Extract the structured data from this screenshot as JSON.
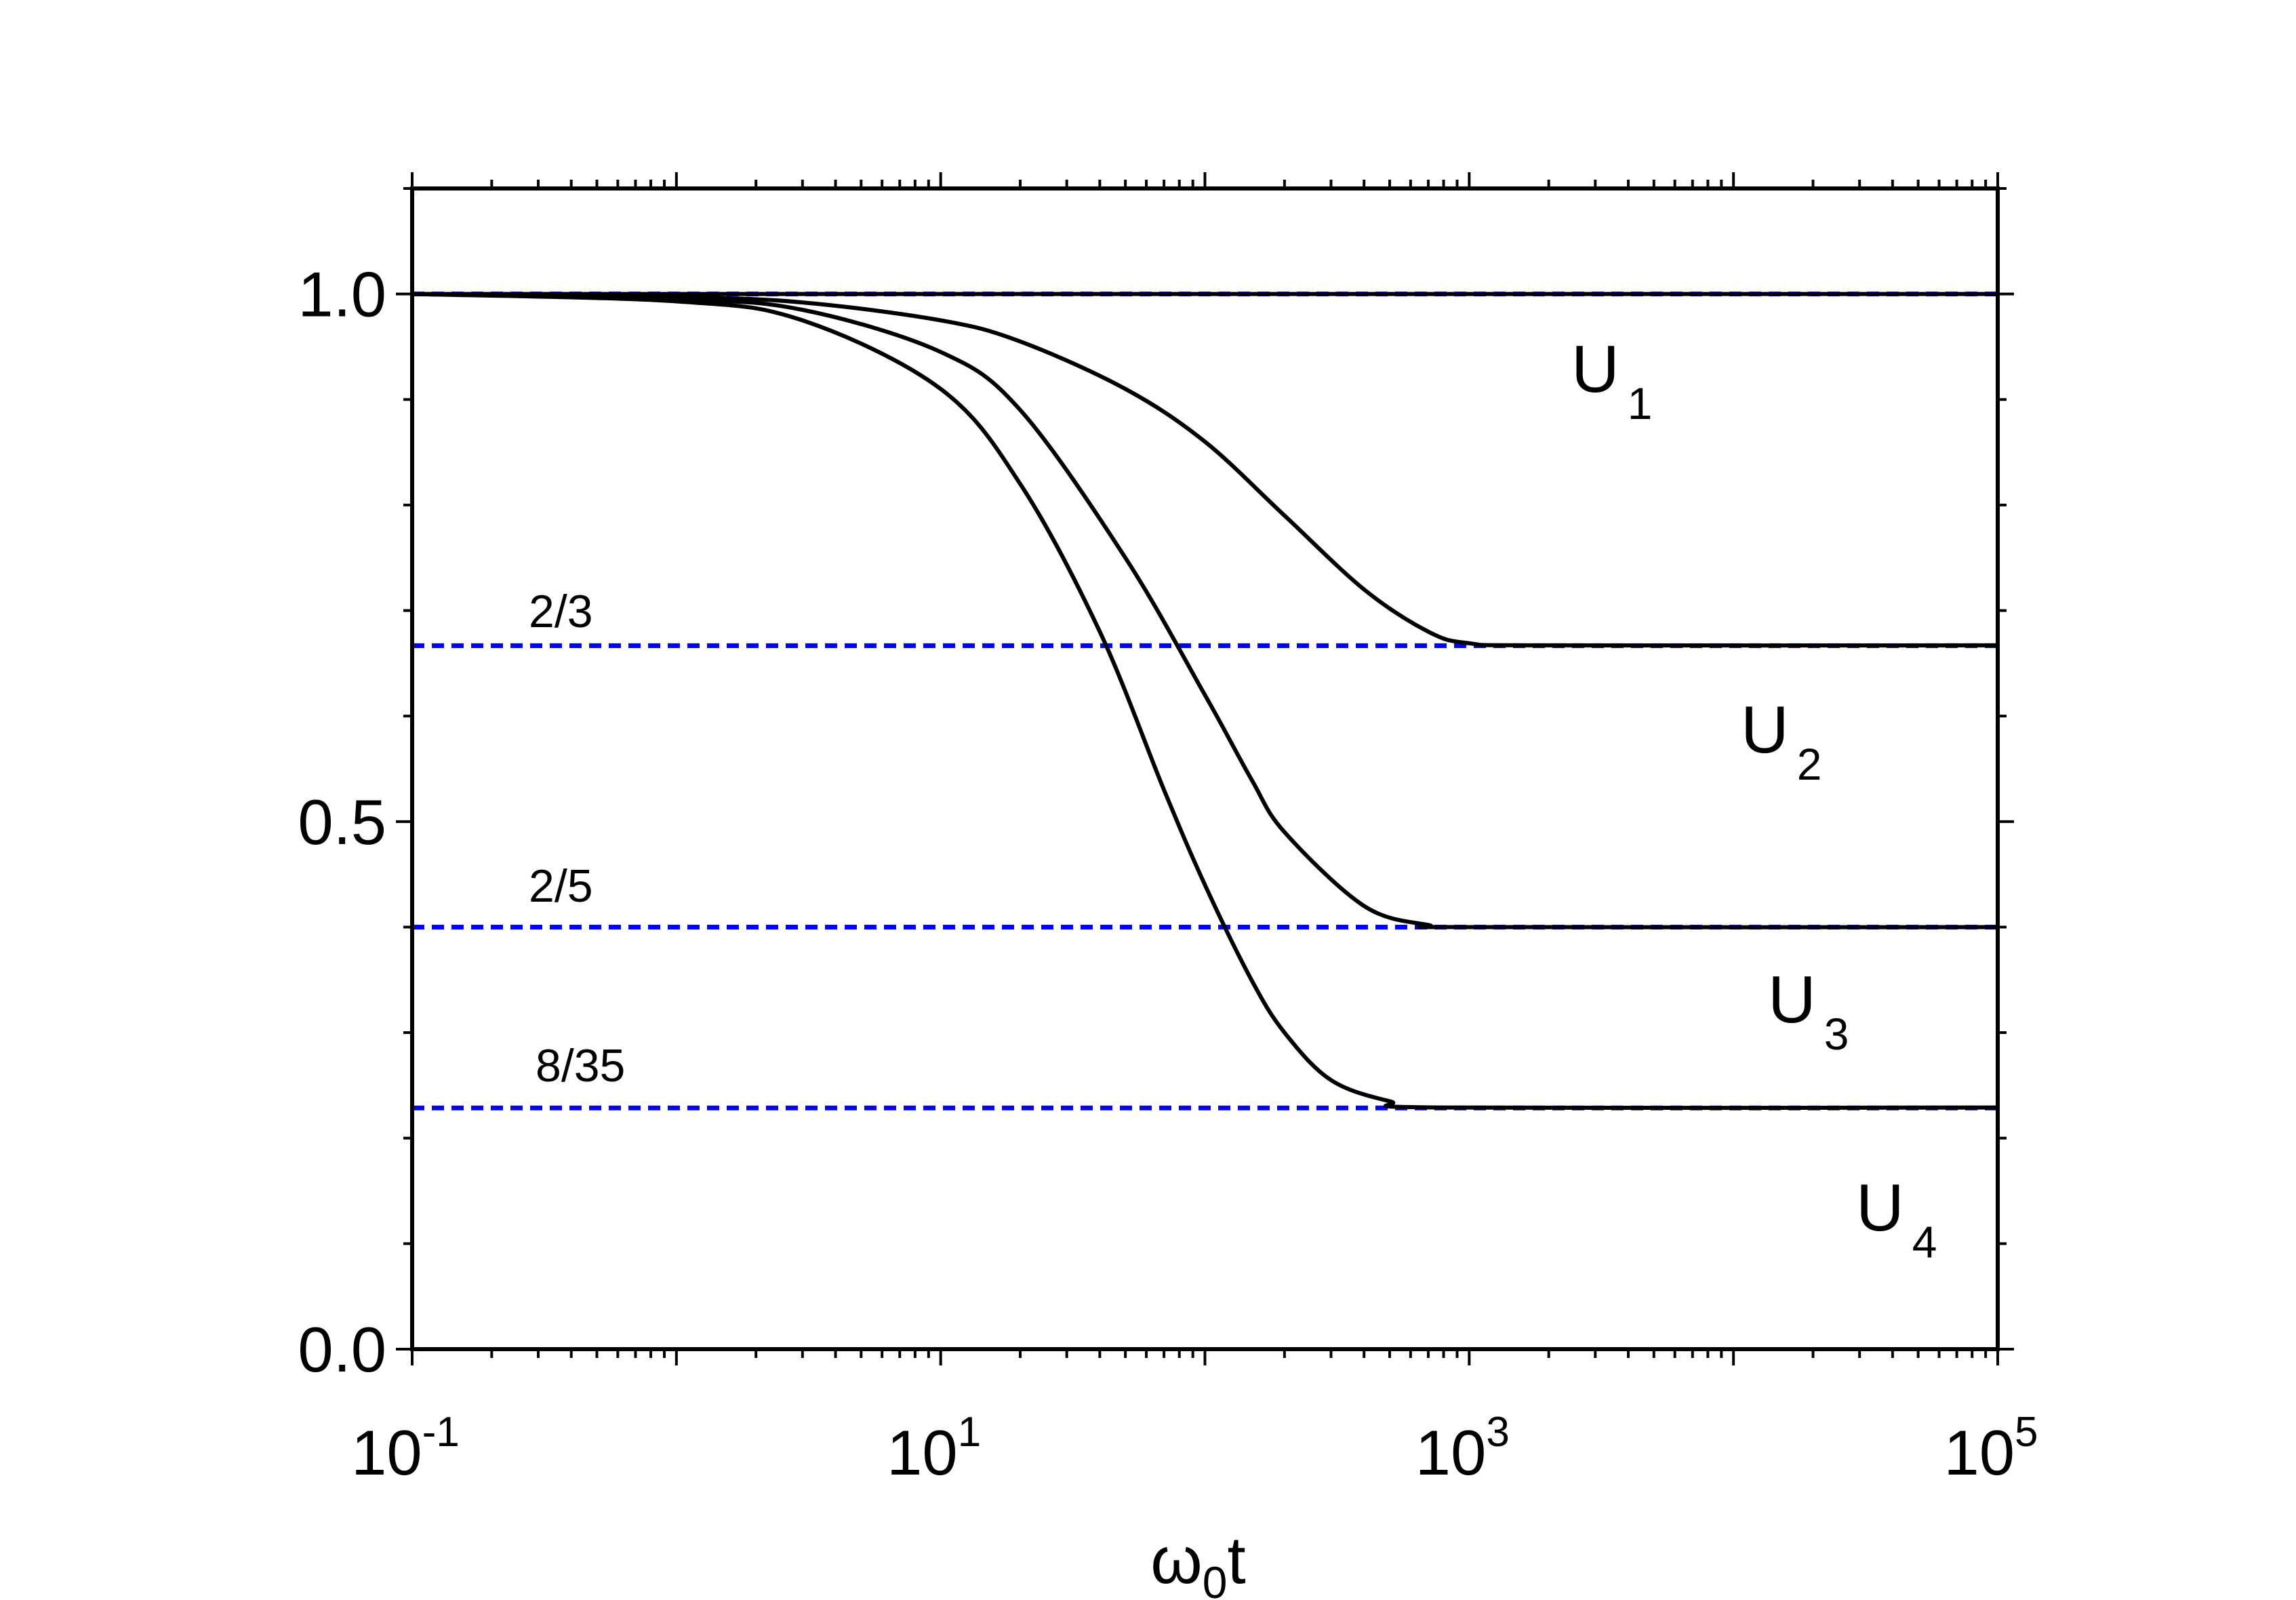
{
  "chart_data": {
    "type": "line",
    "title": "",
    "xlabel": "ω0t",
    "xlabel_base": "ω",
    "xlabel_sub": "0",
    "xlabel_tail": "t",
    "ylabel": "",
    "xscale": "log",
    "xlim": [
      0.1,
      100000
    ],
    "ylim": [
      0.0,
      1.1
    ],
    "grid": false,
    "legend": "none",
    "x_ticks": [
      {
        "base": "10",
        "exp": "-1",
        "value": 0.1
      },
      {
        "base": "10",
        "exp": "1",
        "value": 10
      },
      {
        "base": "10",
        "exp": "3",
        "value": 1000
      },
      {
        "base": "10",
        "exp": "5",
        "value": 100000
      }
    ],
    "y_ticks": [
      {
        "label": "0.0",
        "value": 0.0
      },
      {
        "label": "0.5",
        "value": 0.5
      },
      {
        "label": "1.0",
        "value": 1.0
      }
    ],
    "series": [
      {
        "label_base": "U",
        "label_sub": "1",
        "color": "#000000",
        "style": "solid",
        "x": [
          0.1,
          1,
          10,
          100,
          1000,
          100000
        ],
        "y": [
          1.0,
          1.0,
          1.0,
          1.0,
          1.0,
          1.0
        ]
      },
      {
        "label_base": "U",
        "label_sub": "2",
        "color": "#000000",
        "style": "solid",
        "x": [
          0.1,
          1,
          3,
          10,
          20,
          50,
          100,
          200,
          400,
          700,
          1000,
          2000,
          100000
        ],
        "y": [
          1.0,
          0.997,
          0.992,
          0.975,
          0.955,
          0.91,
          0.86,
          0.79,
          0.72,
          0.68,
          0.669,
          0.667,
          0.667
        ]
      },
      {
        "label_base": "U",
        "label_sub": "3",
        "color": "#000000",
        "style": "solid",
        "x": [
          0.1,
          1,
          3,
          10,
          20,
          50,
          100,
          150,
          200,
          400,
          700,
          1000,
          100000
        ],
        "y": [
          1.0,
          0.995,
          0.985,
          0.945,
          0.89,
          0.75,
          0.62,
          0.54,
          0.49,
          0.42,
          0.402,
          0.4,
          0.4
        ]
      },
      {
        "label_base": "U",
        "label_sub": "4",
        "color": "#000000",
        "style": "solid",
        "x": [
          0.1,
          1,
          3,
          10,
          20,
          40,
          70,
          100,
          150,
          200,
          300,
          500,
          800,
          100000
        ],
        "y": [
          1.0,
          0.993,
          0.975,
          0.91,
          0.82,
          0.68,
          0.53,
          0.44,
          0.35,
          0.3,
          0.255,
          0.235,
          0.229,
          0.229
        ]
      }
    ],
    "reference_lines": [
      {
        "y": 1.0,
        "label": "",
        "color": "#0000ff",
        "style": "dashed"
      },
      {
        "y": 0.6667,
        "label": "2/3",
        "color": "#0000ff",
        "style": "dashed"
      },
      {
        "y": 0.4,
        "label": "2/5",
        "color": "#0000ff",
        "style": "dashed"
      },
      {
        "y": 0.2286,
        "label": "8/35",
        "color": "#0000ff",
        "style": "dashed"
      }
    ]
  }
}
